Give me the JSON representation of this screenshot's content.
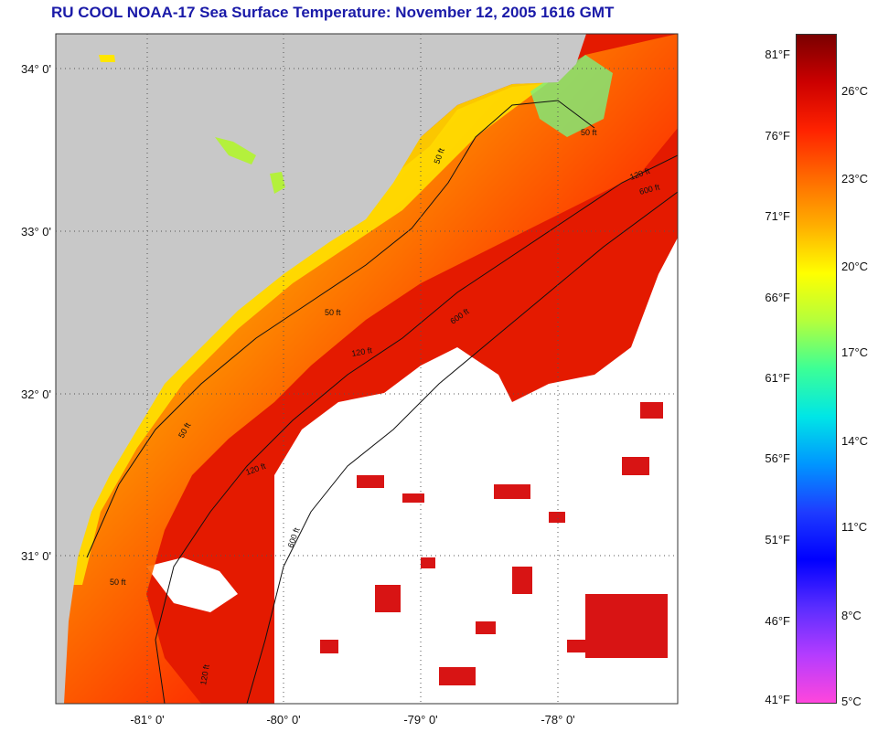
{
  "title": "RU COOL  NOAA-17  Sea Surface Temperature:  November 12, 2005 1616 GMT",
  "map": {
    "lat_labels": [
      "34° 0'",
      "33° 0'",
      "32° 0'",
      "31° 0'"
    ],
    "lon_labels": [
      "-81° 0'",
      "-80° 0'",
      "-79° 0'",
      "-78° 0'"
    ],
    "contour_labels": [
      "50 ft",
      "50 ft",
      "50 ft",
      "50 ft",
      "50 ft",
      "120 ft",
      "120 ft",
      "120 ft",
      "600 ft",
      "600 ft",
      "120 ft",
      "600 ft"
    ],
    "colors": {
      "land": "#c8c8c8",
      "cloud": "#ffffff"
    }
  },
  "colorbar": {
    "fahrenheit": [
      "81°F",
      "76°F",
      "71°F",
      "66°F",
      "61°F",
      "56°F",
      "51°F",
      "46°F",
      "41°F"
    ],
    "celsius": [
      "26°C",
      "23°C",
      "20°C",
      "17°C",
      "14°C",
      "11°C",
      "8°C",
      "5°C"
    ],
    "gradient": [
      "#7a0000",
      "#cc0000",
      "#ff2200",
      "#ff6a00",
      "#ffae00",
      "#ffff00",
      "#b4ff3c",
      "#3cff96",
      "#00e6e6",
      "#0096ff",
      "#1e3cff",
      "#0000ff",
      "#5a2dff",
      "#b43cff",
      "#ff46dc"
    ]
  }
}
